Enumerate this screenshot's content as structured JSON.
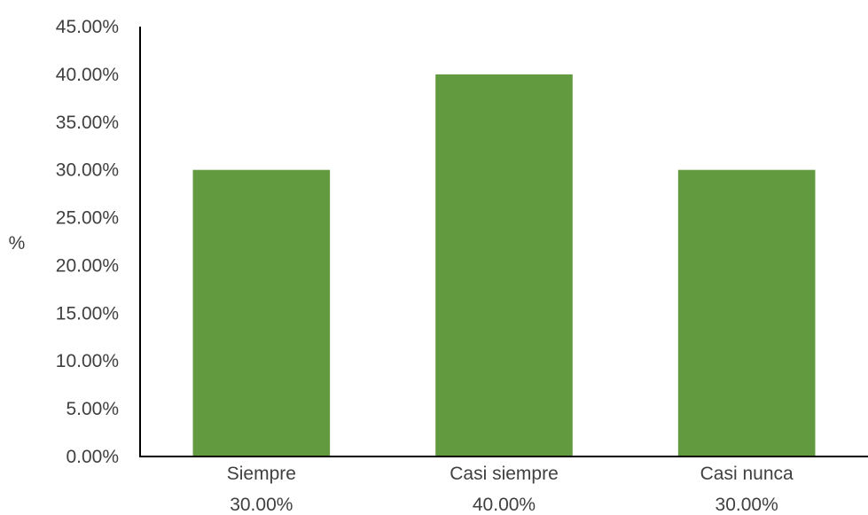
{
  "chart_data": {
    "type": "bar",
    "categories": [
      "Siempre",
      "Casi siempre",
      "Casi nunca"
    ],
    "value_labels": [
      "30.00%",
      "40.00%",
      "30.00%"
    ],
    "values": [
      30,
      40,
      30
    ],
    "ylabel": "%",
    "ylim": [
      0,
      45
    ],
    "yticks": [
      "0.00%",
      "5.00%",
      "10.00%",
      "15.00%",
      "20.00%",
      "25.00%",
      "30.00%",
      "35.00%",
      "40.00%",
      "45.00%"
    ],
    "grid": false,
    "bar_color": "#619a3f"
  }
}
